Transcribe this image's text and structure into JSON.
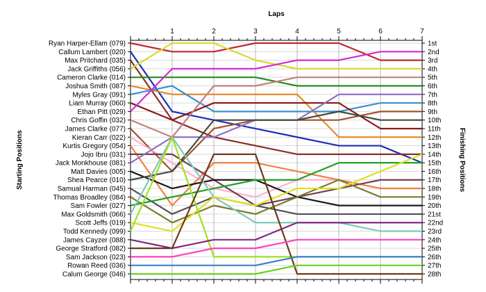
{
  "chart_data": {
    "type": "line",
    "title": "",
    "xlabel": "Laps",
    "ylabel_left": "Starting Positions",
    "ylabel_right": "Finishing Positions",
    "x": [
      0,
      1,
      2,
      3,
      4,
      5,
      6,
      7
    ],
    "x_tick_labels": [
      "1",
      "2",
      "3",
      "4",
      "5",
      "6",
      "7"
    ],
    "y_reversed": true,
    "ylim": [
      1,
      28
    ],
    "grid": true,
    "legend": "none",
    "finishing_labels": [
      "1st",
      "2nd",
      "3rd",
      "4th",
      "5th",
      "6th",
      "7th",
      "8th",
      "9th",
      "10th",
      "11th",
      "12th",
      "13th",
      "14th",
      "15th",
      "16th",
      "17th",
      "18th",
      "19th",
      "20th",
      "21st",
      "22nd",
      "23rd",
      "24th",
      "25th",
      "26th",
      "27th",
      "28th"
    ],
    "series": [
      {
        "name": "Ryan Harper-Ellam (079)",
        "color": "#c0282d",
        "values": [
          1,
          2,
          2,
          1,
          1,
          1,
          3,
          3
        ]
      },
      {
        "name": "Callum Lambert (020)",
        "color": "#1c2fb8",
        "values": [
          2,
          9,
          10,
          11,
          12,
          13,
          13,
          15
        ]
      },
      {
        "name": "Max Pritchard (035)",
        "color": "#8a2f2a",
        "values": [
          3,
          10,
          12,
          13,
          14,
          14,
          14,
          14
        ]
      },
      {
        "name": "Jack Griffiths (056)",
        "color": "#d8d830",
        "values": [
          4,
          1,
          1,
          3,
          4,
          4,
          4,
          4
        ]
      },
      {
        "name": "Cameron Clarke (014)",
        "color": "#228b22",
        "values": [
          5,
          5,
          5,
          5,
          6,
          6,
          6,
          6
        ]
      },
      {
        "name": "Joshua Smith (087)",
        "color": "#e58a2a",
        "values": [
          6,
          7,
          7,
          7,
          7,
          12,
          12,
          12
        ]
      },
      {
        "name": "Myles Gray (091)",
        "color": "#3a8fd0",
        "values": [
          7,
          6,
          9,
          9,
          9,
          9,
          8,
          8
        ]
      },
      {
        "name": "Liam Murray (060)",
        "color": "#8b1a1a",
        "values": [
          8,
          10,
          8,
          8,
          8,
          8,
          11,
          11
        ]
      },
      {
        "name": "Ethan Pitt (029)",
        "color": "#d42ad4",
        "values": [
          9,
          4,
          4,
          4,
          3,
          3,
          2,
          2
        ]
      },
      {
        "name": "Chris Goffin (032)",
        "color": "#c08080",
        "values": [
          10,
          12,
          6,
          6,
          5,
          5,
          5,
          5
        ]
      },
      {
        "name": "James Clarke (077)",
        "color": "#a0522d",
        "values": [
          11,
          16,
          11,
          10,
          10,
          10,
          9,
          9
        ]
      },
      {
        "name": "Kieran Carr (022)",
        "color": "#ffb0d0",
        "values": [
          12,
          15,
          18,
          19,
          17,
          17,
          18,
          18
        ]
      },
      {
        "name": "Kurtis Gregory (054)",
        "color": "#f08040",
        "values": [
          13,
          20,
          15,
          15,
          16,
          17,
          18,
          18
        ]
      },
      {
        "name": "Jojo Ibru (031)",
        "color": "#704050",
        "values": [
          14,
          14,
          17,
          20,
          19,
          18,
          17,
          17
        ]
      },
      {
        "name": "Jack Monkhouse (081)",
        "color": "#9070c0",
        "values": [
          15,
          12,
          12,
          10,
          10,
          7,
          7,
          7
        ]
      },
      {
        "name": "Matt Davies (005)",
        "color": "#1a1a1a",
        "values": [
          16,
          18,
          17,
          17,
          19,
          20,
          20,
          20
        ]
      },
      {
        "name": "Shea Pearce (010)",
        "color": "#404a40",
        "values": [
          17,
          16,
          10,
          10,
          10,
          9,
          10,
          10
        ]
      },
      {
        "name": "Samual Harman (045)",
        "color": "#505050",
        "values": [
          18,
          21,
          19,
          20,
          21,
          21,
          21,
          21
        ]
      },
      {
        "name": "Thomas Broadley (084)",
        "color": "#7a7a2a",
        "values": [
          19,
          22,
          20,
          21,
          19,
          17,
          19,
          19
        ]
      },
      {
        "name": "Sam Fowler (027)",
        "color": "#20a020",
        "values": [
          20,
          19,
          18,
          17,
          17,
          15,
          15,
          15
        ]
      },
      {
        "name": "Max Goldsmith (066)",
        "color": "#80c8b8",
        "values": [
          21,
          12,
          19,
          22,
          22,
          22,
          23,
          23
        ]
      },
      {
        "name": "Scott Jeffs (019)",
        "color": "#e0e020",
        "values": [
          22,
          23,
          19,
          20,
          18,
          18,
          16,
          14
        ]
      },
      {
        "name": "Todd Kennedy (099)",
        "color": "#a0e020",
        "values": [
          23,
          12,
          26,
          26,
          26,
          26,
          26,
          26
        ]
      },
      {
        "name": "James Cayzer (088)",
        "color": "#802a80",
        "values": [
          24,
          25,
          24,
          24,
          22,
          22,
          22,
          22
        ]
      },
      {
        "name": "George Stratford (082)",
        "color": "#6b3a1a",
        "values": [
          25,
          25,
          14,
          14,
          28,
          28,
          28,
          28
        ]
      },
      {
        "name": "Sam Jackson (023)",
        "color": "#ff40c0",
        "values": [
          26,
          26,
          25,
          25,
          24,
          24,
          24,
          24
        ]
      },
      {
        "name": "Rowan Reed (036)",
        "color": "#3a80c8",
        "values": [
          27,
          27,
          27,
          27,
          26,
          26,
          26,
          26
        ]
      },
      {
        "name": "Calum George (046)",
        "color": "#6ad020",
        "values": [
          28,
          28,
          28,
          28,
          27,
          27,
          27,
          27
        ]
      }
    ]
  }
}
